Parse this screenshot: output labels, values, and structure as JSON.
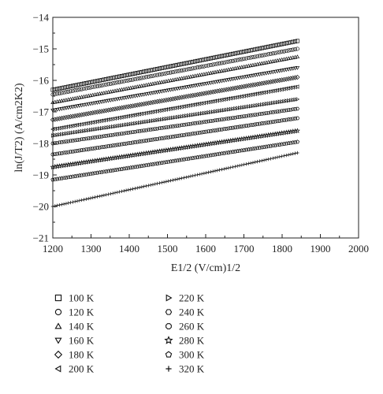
{
  "chart_data": {
    "type": "scatter",
    "title": "",
    "xlabel": "E1/2 (V/cm)1/2",
    "ylabel": "ln(J/T2) (A/cm2K2)",
    "xlim": [
      1200,
      2000
    ],
    "ylim": [
      -21,
      -14
    ],
    "xticks": [
      "1200",
      "1300",
      "1400",
      "1500",
      "1600",
      "1700",
      "1800",
      "1900",
      "2000"
    ],
    "yticks": [
      "−21",
      "−20",
      "−19",
      "−18",
      "−17",
      "−16",
      "−15",
      "−14"
    ],
    "grid": false,
    "legend_position": "below",
    "x_range": [
      1200,
      1840
    ],
    "series": [
      {
        "name": "100 K",
        "marker": "square",
        "y_start": -16.3,
        "y_end": -14.75
      },
      {
        "name": "120 K",
        "marker": "circle",
        "y_start": -16.45,
        "y_end": -15.0
      },
      {
        "name": "140 K",
        "marker": "triangle-up",
        "y_start": -16.7,
        "y_end": -15.25
      },
      {
        "name": "160 K",
        "marker": "triangle-down",
        "y_start": -16.95,
        "y_end": -15.6
      },
      {
        "name": "180 K",
        "marker": "diamond",
        "y_start": -17.25,
        "y_end": -15.9
      },
      {
        "name": "200 K",
        "marker": "triangle-left",
        "y_start": -17.55,
        "y_end": -16.2
      },
      {
        "name": "220 K",
        "marker": "triangle-right",
        "y_start": -17.75,
        "y_end": -16.6
      },
      {
        "name": "240 K",
        "marker": "hexagon",
        "y_start": -18.0,
        "y_end": -16.9
      },
      {
        "name": "260 K",
        "marker": "octagon",
        "y_start": -18.35,
        "y_end": -17.2
      },
      {
        "name": "280 K",
        "marker": "star",
        "y_start": -18.75,
        "y_end": -17.6
      },
      {
        "name": "300 K",
        "marker": "pentagon",
        "y_start": -19.15,
        "y_end": -17.95
      },
      {
        "name": "320 K",
        "marker": "plus",
        "y_start": -20.0,
        "y_end": -18.3
      }
    ]
  }
}
